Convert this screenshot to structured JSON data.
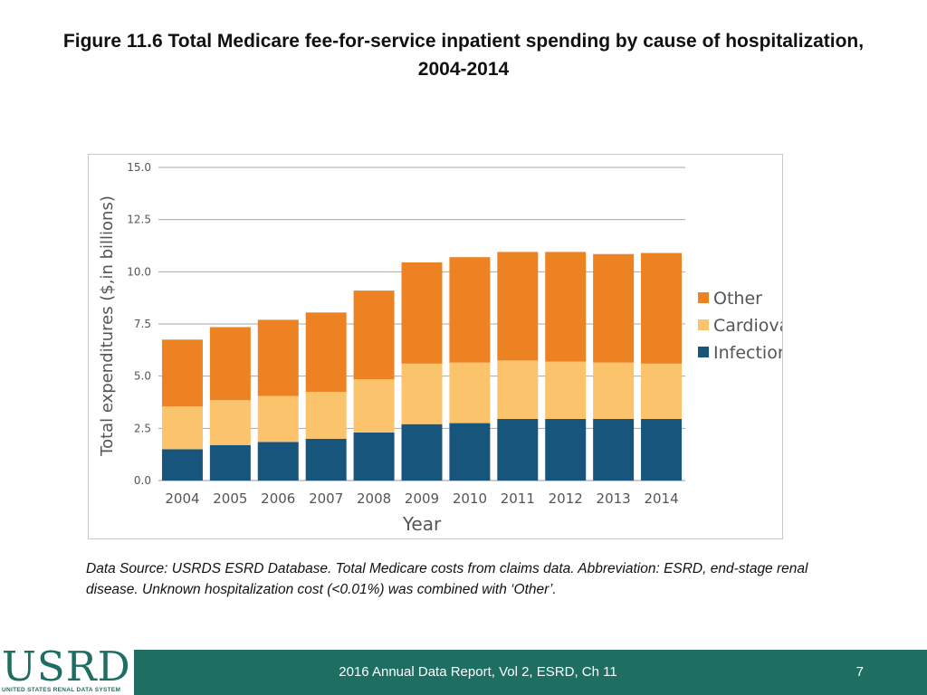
{
  "title": {
    "line1": "Figure 11.6 Total Medicare fee-for-service inpatient spending by cause of hospitalization,",
    "line2": "2004-2014"
  },
  "chart_data": {
    "type": "bar",
    "stacked": true,
    "title": "",
    "xlabel": "Year",
    "ylabel": "Total expenditures ($,in billions)",
    "ylim": [
      0,
      15
    ],
    "yticks": [
      "0.0",
      "2.5",
      "5.0",
      "7.5",
      "10.0",
      "12.5",
      "15.0"
    ],
    "grid": true,
    "legend_position": "right",
    "categories": [
      "2004",
      "2005",
      "2006",
      "2007",
      "2008",
      "2009",
      "2010",
      "2011",
      "2012",
      "2013",
      "2014"
    ],
    "series": [
      {
        "name": "Infection",
        "color": "#17557d",
        "values": [
          1.5,
          1.7,
          1.85,
          2.0,
          2.3,
          2.7,
          2.75,
          2.95,
          2.95,
          2.95,
          2.95
        ]
      },
      {
        "name": "Cardiovascular",
        "color": "#fbc36b",
        "values": [
          2.05,
          2.15,
          2.2,
          2.25,
          2.55,
          2.9,
          2.9,
          2.8,
          2.75,
          2.7,
          2.65
        ]
      },
      {
        "name": "Other",
        "color": "#ec8222",
        "values": [
          3.2,
          3.5,
          3.65,
          3.8,
          4.25,
          4.85,
          5.05,
          5.2,
          5.25,
          5.2,
          5.3
        ]
      }
    ],
    "legend_order": [
      "Other",
      "Cardiovascular",
      "Infection"
    ]
  },
  "source_note": "Data Source: USRDS ESRD Database. Total Medicare costs from claims data. Abbreviation: ESRD, end-stage renal disease. Unknown hospitalization cost (<0.01%) was combined with ‘Other’.",
  "footer": {
    "report": "2016 Annual Data Report, Vol 2, ESRD, Ch 11",
    "page": "7",
    "color": "#1e6e62"
  },
  "logo": {
    "word": "USRDS",
    "subtitle": "UNITED STATES RENAL DATA SYSTEM"
  }
}
